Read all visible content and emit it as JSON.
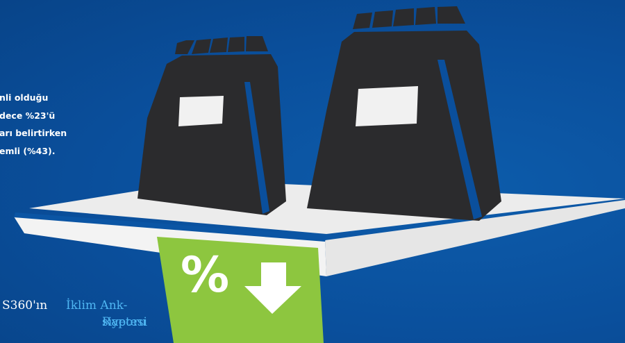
{
  "stat": {
    "lines": [
      "nli olduğu",
      "dece %23'ü",
      "arı belirtirken",
      "emli (%43)."
    ]
  },
  "source": {
    "brand": "S360'ın",
    "link_line1": "İklim Ank-",
    "line2_part": "siyetesi",
    "link_line2": "Raporu"
  },
  "graphic": {
    "percent_symbol": "%",
    "colors": {
      "background": "#0a4f9c",
      "bag": "#2b2b2d",
      "shelf": "#ececec",
      "tag": "#8dc63f",
      "label": "#f1f1f1"
    },
    "icons": [
      "shopping-bag-icon",
      "shopping-bag-icon",
      "price-tag-icon",
      "arrow-down-icon"
    ]
  }
}
